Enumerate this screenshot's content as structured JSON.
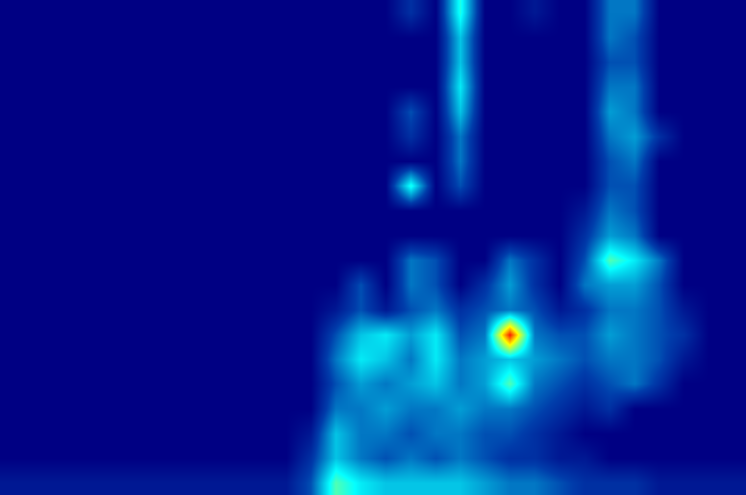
{
  "chart_data": {
    "type": "heatmap",
    "color": "Jet",
    "tick_labels": false,
    "xlim": [
      -0.5,
      29.5
    ],
    "ylim": [
      19.5,
      -0.5
    ],
    "zlim": [
      0,
      1
    ],
    "cells": [
      [
        0,
        0,
        0,
        0,
        0,
        0,
        0,
        0,
        0,
        0,
        0,
        0,
        0,
        0,
        0,
        0,
        0.1,
        0,
        0.4,
        0,
        0,
        0.05,
        0,
        0,
        0.2,
        0.2,
        0,
        0,
        0,
        0
      ],
      [
        0,
        0,
        0,
        0,
        0,
        0,
        0,
        0,
        0,
        0,
        0,
        0,
        0,
        0,
        0,
        0,
        0,
        0,
        0.3,
        0,
        0,
        0,
        0,
        0,
        0.2,
        0.15,
        0,
        0,
        0,
        0
      ],
      [
        0,
        0,
        0,
        0,
        0,
        0,
        0,
        0,
        0,
        0,
        0,
        0,
        0,
        0,
        0,
        0,
        0,
        0,
        0.3,
        0,
        0,
        0,
        0,
        0,
        0.15,
        0.15,
        0,
        0,
        0,
        0
      ],
      [
        0,
        0,
        0,
        0,
        0,
        0,
        0,
        0,
        0,
        0,
        0,
        0,
        0,
        0,
        0,
        0,
        0,
        0,
        0.35,
        0,
        0,
        0,
        0,
        0,
        0.2,
        0.2,
        0,
        0,
        0,
        0
      ],
      [
        0,
        0,
        0,
        0,
        0,
        0,
        0,
        0,
        0,
        0,
        0,
        0,
        0,
        0,
        0,
        0,
        0.15,
        0,
        0.3,
        0,
        0,
        0,
        0,
        0,
        0.25,
        0.2,
        0,
        0,
        0,
        0
      ],
      [
        0,
        0,
        0,
        0,
        0,
        0,
        0,
        0,
        0,
        0,
        0,
        0,
        0,
        0,
        0,
        0,
        0.1,
        0,
        0.2,
        0,
        0,
        0,
        0,
        0,
        0.2,
        0.25,
        0.1,
        0,
        0,
        0
      ],
      [
        0,
        0,
        0,
        0,
        0,
        0,
        0,
        0,
        0,
        0,
        0,
        0,
        0,
        0,
        0,
        0,
        0,
        0,
        0.2,
        0,
        0,
        0,
        0,
        0,
        0.15,
        0.2,
        0,
        0,
        0,
        0
      ],
      [
        0,
        0,
        0,
        0,
        0,
        0,
        0,
        0,
        0,
        0,
        0,
        0,
        0,
        0,
        0,
        0,
        0.4,
        0,
        0.15,
        0,
        0,
        0,
        0,
        0,
        0.15,
        0.15,
        0,
        0,
        0,
        0
      ],
      [
        0,
        0,
        0,
        0,
        0,
        0,
        0,
        0,
        0,
        0,
        0,
        0,
        0,
        0,
        0,
        0,
        0,
        0,
        0,
        0,
        0,
        0,
        0,
        0.05,
        0.2,
        0.15,
        0,
        0,
        0,
        0
      ],
      [
        0,
        0,
        0,
        0,
        0,
        0,
        0,
        0,
        0,
        0,
        0,
        0,
        0,
        0,
        0,
        0,
        0,
        0,
        0,
        0,
        0,
        0,
        0,
        0.1,
        0.25,
        0.2,
        0,
        0,
        0,
        0
      ],
      [
        0,
        0,
        0,
        0,
        0,
        0,
        0,
        0,
        0,
        0,
        0,
        0,
        0,
        0,
        0,
        0,
        0.2,
        0.15,
        0,
        0,
        0.2,
        0.1,
        0,
        0.15,
        0.45,
        0.35,
        0.2,
        0,
        0,
        0
      ],
      [
        0,
        0,
        0,
        0,
        0,
        0,
        0,
        0,
        0,
        0,
        0,
        0,
        0,
        0,
        0.15,
        0,
        0.2,
        0.15,
        0,
        0.1,
        0.25,
        0.1,
        0,
        0.2,
        0.25,
        0.25,
        0.15,
        0,
        0,
        0
      ],
      [
        0,
        0,
        0,
        0,
        0,
        0,
        0,
        0,
        0,
        0,
        0,
        0,
        0,
        0.05,
        0.15,
        0.05,
        0.15,
        0.2,
        0.1,
        0.15,
        0.2,
        0.15,
        0.05,
        0.1,
        0.2,
        0.2,
        0.15,
        0.05,
        0,
        0
      ],
      [
        0,
        0,
        0,
        0,
        0,
        0,
        0,
        0,
        0,
        0,
        0,
        0,
        0,
        0.15,
        0.3,
        0.35,
        0.25,
        0.35,
        0.15,
        0.2,
        0.85,
        0.2,
        0.15,
        0.15,
        0.25,
        0.2,
        0.15,
        0.1,
        0,
        0
      ],
      [
        0,
        0,
        0,
        0,
        0,
        0,
        0,
        0,
        0,
        0,
        0,
        0,
        0,
        0.2,
        0.35,
        0.3,
        0.2,
        0.35,
        0.2,
        0.25,
        0.3,
        0.25,
        0.2,
        0.15,
        0.2,
        0.2,
        0.15,
        0.05,
        0,
        0
      ],
      [
        0,
        0,
        0,
        0,
        0,
        0,
        0,
        0,
        0,
        0,
        0,
        0,
        0,
        0.15,
        0.25,
        0.2,
        0.25,
        0.3,
        0.2,
        0.25,
        0.45,
        0.2,
        0.15,
        0.1,
        0.15,
        0.2,
        0.1,
        0,
        0,
        0
      ],
      [
        0,
        0,
        0,
        0,
        0,
        0,
        0,
        0,
        0,
        0,
        0,
        0,
        0,
        0.2,
        0.2,
        0.25,
        0.2,
        0.2,
        0.25,
        0.2,
        0.2,
        0.15,
        0.1,
        0.05,
        0.1,
        0,
        0,
        0,
        0,
        0
      ],
      [
        0,
        0,
        0,
        0,
        0,
        0,
        0,
        0,
        0,
        0,
        0,
        0,
        0.05,
        0.3,
        0.2,
        0.2,
        0.15,
        0.2,
        0.2,
        0.15,
        0.15,
        0.1,
        0.05,
        0,
        0,
        0,
        0,
        0,
        0,
        0
      ],
      [
        0,
        0,
        0,
        0,
        0,
        0,
        0,
        0,
        0,
        0,
        0,
        0,
        0.1,
        0.3,
        0.2,
        0.15,
        0.2,
        0.15,
        0.2,
        0.15,
        0.1,
        0.1,
        0.05,
        0.05,
        0,
        0,
        0,
        0,
        0,
        0
      ],
      [
        0.05,
        0.05,
        0.05,
        0.05,
        0.05,
        0.05,
        0.05,
        0.05,
        0.05,
        0.05,
        0.05,
        0.05,
        0.15,
        0.45,
        0.35,
        0.3,
        0.3,
        0.3,
        0.3,
        0.25,
        0.2,
        0.2,
        0.15,
        0.1,
        0.1,
        0.1,
        0.05,
        0.05,
        0.05,
        0.05
      ]
    ]
  }
}
